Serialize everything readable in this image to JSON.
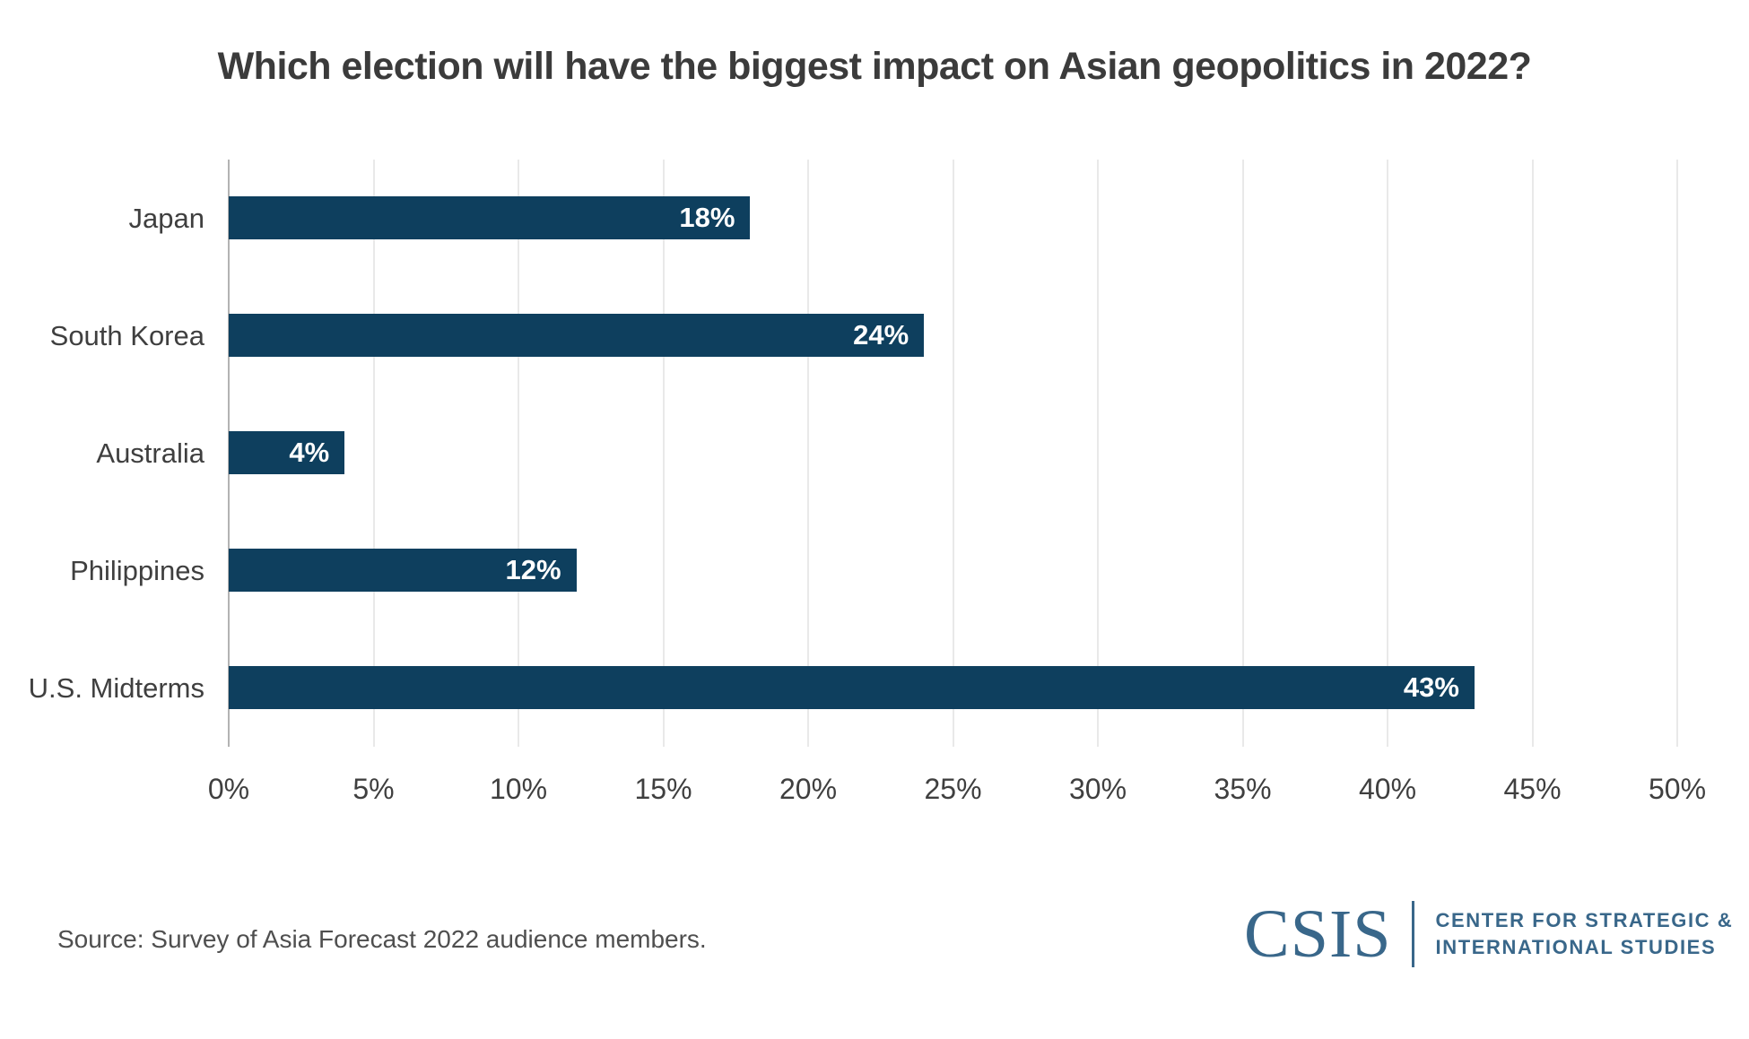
{
  "title": "Which election will have the biggest impact on Asian geopolitics in 2022?",
  "source_note": "Source: Survey of Asia Forecast 2022 audience members.",
  "logo": {
    "acronym": "CSIS",
    "name_line1": "CENTER FOR STRATEGIC &",
    "name_line2": "INTERNATIONAL STUDIES"
  },
  "colors": {
    "bar": "#0e3f5e",
    "logo_blue": "#39678a",
    "title_text": "#3b3b3b",
    "label_text": "#3f3f3f",
    "source_text": "#4f4f4f",
    "gridline": "#e9e9e9",
    "axis_line": "#b3b3b3",
    "bar_value_text": "#ffffff",
    "background": "#ffffff"
  },
  "chart_data": {
    "type": "bar",
    "orientation": "horizontal",
    "title": "Which election will have the biggest impact on Asian geopolitics in 2022?",
    "categories": [
      "Japan",
      "South Korea",
      "Australia",
      "Philippines",
      "U.S. Midterms"
    ],
    "values": [
      18,
      24,
      4,
      12,
      43
    ],
    "value_labels": [
      "18%",
      "24%",
      "4%",
      "12%",
      "43%"
    ],
    "xlabel": "",
    "ylabel": "",
    "xlim": [
      0,
      50
    ],
    "xtick_step": 5,
    "xticks": [
      "0%",
      "5%",
      "10%",
      "15%",
      "20%",
      "25%",
      "30%",
      "35%",
      "40%",
      "45%",
      "50%"
    ],
    "grid": true,
    "legend": false,
    "value_label_position": "inside-right"
  }
}
